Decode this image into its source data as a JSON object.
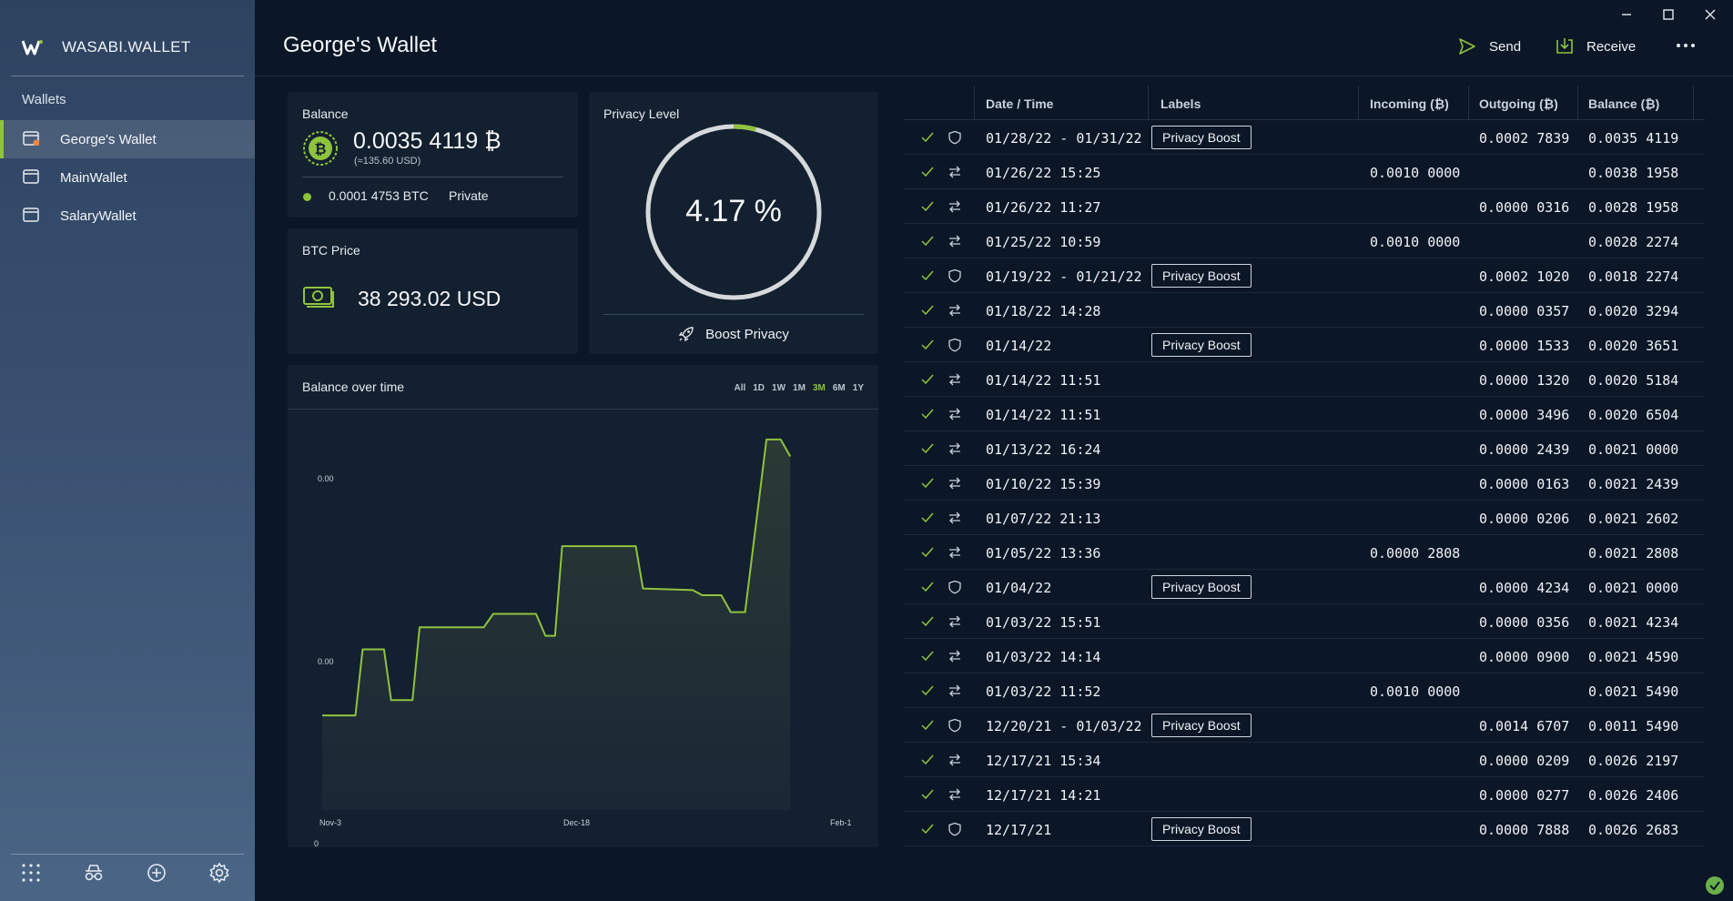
{
  "app": {
    "name": "WASABI.WALLET"
  },
  "sidebar": {
    "heading": "Wallets",
    "wallets": [
      {
        "label": "George's Wallet",
        "active": true
      },
      {
        "label": "MainWallet",
        "active": false
      },
      {
        "label": "SalaryWallet",
        "active": false
      }
    ],
    "bottom_icons": [
      "grid-icon",
      "incognito-icon",
      "add-wallet-icon",
      "settings-icon"
    ]
  },
  "header": {
    "title": "George's Wallet",
    "send_label": "Send",
    "receive_label": "Receive"
  },
  "balance": {
    "title": "Balance",
    "amount": "0.0035 4119 ₿",
    "usd": "(≈135.60 USD)",
    "private_amount": "0.0001 4753 BTC",
    "private_label": "Private"
  },
  "btc_price": {
    "title": "BTC Price",
    "value": "38 293.02 USD"
  },
  "privacy": {
    "title": "Privacy Level",
    "percent_text": "4.17 %",
    "percent": 4.17,
    "boost_label": "Boost Privacy"
  },
  "chart": {
    "title": "Balance over time",
    "ranges": [
      "All",
      "1D",
      "1W",
      "1M",
      "3M",
      "6M",
      "1Y"
    ],
    "selected_range": "3M"
  },
  "chart_data": {
    "type": "area",
    "x_tick_labels": [
      "Nov-3",
      "Dec-18",
      "Feb-1"
    ],
    "y_tick_labels": [
      "0.00",
      "0.00",
      "0"
    ],
    "line_color": "#8fc33e",
    "points": [
      [
        0.0,
        0.145
      ],
      [
        0.07,
        0.145
      ],
      [
        0.085,
        0.34
      ],
      [
        0.13,
        0.34
      ],
      [
        0.145,
        0.19
      ],
      [
        0.19,
        0.19
      ],
      [
        0.205,
        0.405
      ],
      [
        0.34,
        0.405
      ],
      [
        0.36,
        0.445
      ],
      [
        0.45,
        0.445
      ],
      [
        0.47,
        0.38
      ],
      [
        0.49,
        0.38
      ],
      [
        0.505,
        0.645
      ],
      [
        0.66,
        0.645
      ],
      [
        0.675,
        0.52
      ],
      [
        0.78,
        0.515
      ],
      [
        0.8,
        0.5
      ],
      [
        0.84,
        0.5
      ],
      [
        0.86,
        0.45
      ],
      [
        0.89,
        0.45
      ],
      [
        0.935,
        0.96
      ],
      [
        0.965,
        0.96
      ],
      [
        0.985,
        0.91
      ]
    ]
  },
  "transactions": {
    "columns": [
      "Date / Time",
      "Labels",
      "Incoming (₿)",
      "Outgoing (₿)",
      "Balance (₿)"
    ],
    "rows": [
      {
        "type": "coinjoin",
        "date": "01/28/22 - 01/31/22",
        "label": "Privacy Boost",
        "in": "",
        "out": "0.0002 7839",
        "bal": "0.0035 4119"
      },
      {
        "type": "transfer",
        "date": "01/26/22 15:25",
        "label": "",
        "in": "0.0010 0000",
        "out": "",
        "bal": "0.0038 1958"
      },
      {
        "type": "transfer",
        "date": "01/26/22 11:27",
        "label": "",
        "in": "",
        "out": "0.0000 0316",
        "bal": "0.0028 1958"
      },
      {
        "type": "transfer",
        "date": "01/25/22 10:59",
        "label": "",
        "in": "0.0010 0000",
        "out": "",
        "bal": "0.0028 2274"
      },
      {
        "type": "coinjoin",
        "date": "01/19/22 - 01/21/22",
        "label": "Privacy Boost",
        "in": "",
        "out": "0.0002 1020",
        "bal": "0.0018 2274"
      },
      {
        "type": "transfer",
        "date": "01/18/22 14:28",
        "label": "",
        "in": "",
        "out": "0.0000 0357",
        "bal": "0.0020 3294"
      },
      {
        "type": "coinjoin",
        "date": "01/14/22",
        "label": "Privacy Boost",
        "in": "",
        "out": "0.0000 1533",
        "bal": "0.0020 3651"
      },
      {
        "type": "transfer",
        "date": "01/14/22 11:51",
        "label": "",
        "in": "",
        "out": "0.0000 1320",
        "bal": "0.0020 5184"
      },
      {
        "type": "transfer",
        "date": "01/14/22 11:51",
        "label": "",
        "in": "",
        "out": "0.0000 3496",
        "bal": "0.0020 6504"
      },
      {
        "type": "transfer",
        "date": "01/13/22 16:24",
        "label": "",
        "in": "",
        "out": "0.0000 2439",
        "bal": "0.0021 0000"
      },
      {
        "type": "transfer",
        "date": "01/10/22 15:39",
        "label": "",
        "in": "",
        "out": "0.0000 0163",
        "bal": "0.0021 2439"
      },
      {
        "type": "transfer",
        "date": "01/07/22 21:13",
        "label": "",
        "in": "",
        "out": "0.0000 0206",
        "bal": "0.0021 2602"
      },
      {
        "type": "transfer",
        "date": "01/05/22 13:36",
        "label": "",
        "in": "0.0000 2808",
        "out": "",
        "bal": "0.0021 2808"
      },
      {
        "type": "coinjoin",
        "date": "01/04/22",
        "label": "Privacy Boost",
        "in": "",
        "out": "0.0000 4234",
        "bal": "0.0021 0000"
      },
      {
        "type": "transfer",
        "date": "01/03/22 15:51",
        "label": "",
        "in": "",
        "out": "0.0000 0356",
        "bal": "0.0021 4234"
      },
      {
        "type": "transfer",
        "date": "01/03/22 14:14",
        "label": "",
        "in": "",
        "out": "0.0000 0900",
        "bal": "0.0021 4590"
      },
      {
        "type": "transfer",
        "date": "01/03/22 11:52",
        "label": "",
        "in": "0.0010 0000",
        "out": "",
        "bal": "0.0021 5490"
      },
      {
        "type": "coinjoin",
        "date": "12/20/21 - 01/03/22",
        "label": "Privacy Boost",
        "in": "",
        "out": "0.0014 6707",
        "bal": "0.0011 5490"
      },
      {
        "type": "transfer",
        "date": "12/17/21 15:34",
        "label": "",
        "in": "",
        "out": "0.0000 0209",
        "bal": "0.0026 2197"
      },
      {
        "type": "transfer",
        "date": "12/17/21 14:21",
        "label": "",
        "in": "",
        "out": "0.0000 0277",
        "bal": "0.0026 2406"
      },
      {
        "type": "coinjoin",
        "date": "12/17/21",
        "label": "Privacy Boost",
        "in": "",
        "out": "0.0000 7888",
        "bal": "0.0026 2683"
      }
    ]
  },
  "colors": {
    "accent": "#8fc33e",
    "background": "#0b1626",
    "card": "#13202f"
  }
}
